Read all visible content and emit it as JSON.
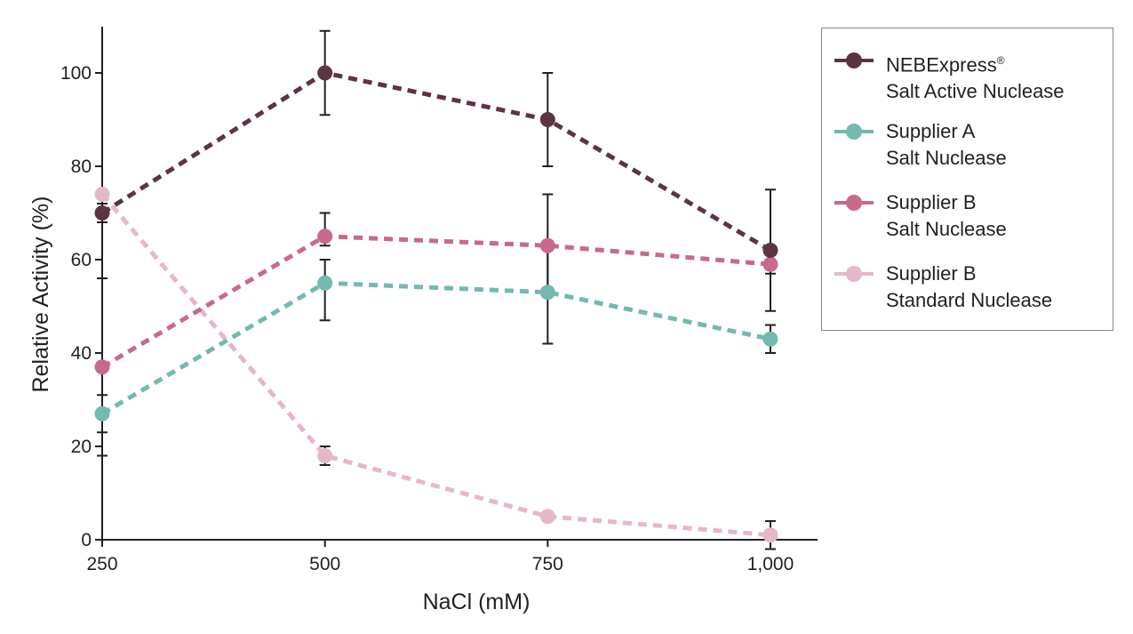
{
  "chart_data": {
    "type": "line",
    "xlabel": "NaCl (mM)",
    "ylabel": "Relative Activity (%)",
    "x": [
      250,
      500,
      750,
      1000
    ],
    "x_tick_labels": [
      "250",
      "500",
      "750",
      "1,000"
    ],
    "y_ticks": [
      0,
      20,
      40,
      60,
      80,
      100
    ],
    "xlim": [
      250,
      1000
    ],
    "ylim": [
      0,
      110
    ],
    "grid": false,
    "legend_position": "right",
    "line_style": "dashed",
    "series": [
      {
        "name": "NEBExpress® Salt Active Nuclease",
        "name_line1": "NEBExpress",
        "name_sup": "®",
        "name_line2": "Salt Active Nuclease",
        "color": "#5c3443",
        "values": [
          70,
          100,
          90,
          62
        ],
        "error_low": [
          68,
          91,
          80,
          49
        ],
        "error_high": [
          72,
          109,
          100,
          75
        ]
      },
      {
        "name": "Supplier A Salt Nuclease",
        "name_line1": "Supplier A",
        "name_line2": "Salt Nuclease",
        "color": "#72bab0",
        "values": [
          27,
          55,
          53,
          43
        ],
        "error_low": [
          23,
          47,
          42,
          40
        ],
        "error_high": [
          31,
          60,
          64,
          46
        ]
      },
      {
        "name": "Supplier B Salt Nuclease",
        "name_line1": "Supplier B",
        "name_line2": "Salt Nuclease",
        "color": "#c8698c",
        "values": [
          37,
          65,
          63,
          59
        ],
        "error_low": [
          18,
          63,
          52,
          57
        ],
        "error_high": [
          56,
          70,
          74,
          61
        ]
      },
      {
        "name": "Supplier B Standard Nuclease",
        "name_line1": "Supplier B",
        "name_line2": "Standard Nuclease",
        "color": "#e5b8c8",
        "values": [
          74,
          18,
          5,
          1
        ],
        "error_low": [
          74,
          16,
          5,
          -2
        ],
        "error_high": [
          74,
          20,
          5,
          4
        ]
      }
    ]
  }
}
